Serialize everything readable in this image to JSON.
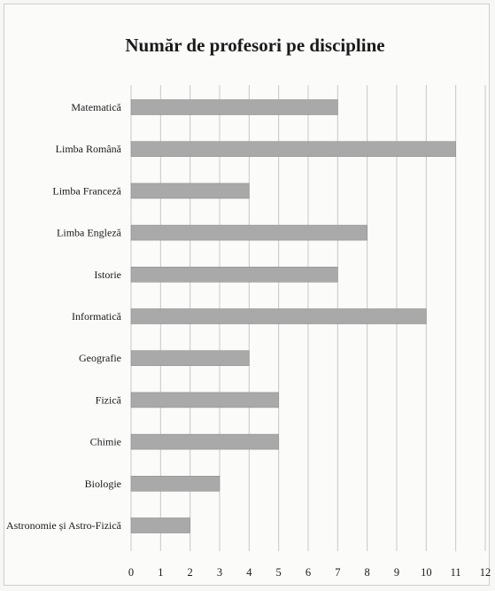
{
  "chart_data": {
    "type": "bar",
    "orientation": "horizontal",
    "title": "Număr de profesori pe discipline",
    "categories": [
      "Matematică",
      "Limba Română",
      "Limba Franceză",
      "Limba Engleză",
      "Istorie",
      "Informatică",
      "Geografie",
      "Fizică",
      "Chimie",
      "Biologie",
      "Astronomie și Astro-Fizică"
    ],
    "values": [
      7,
      11,
      4,
      8,
      7,
      10,
      4,
      5,
      5,
      3,
      2
    ],
    "xlim": [
      0,
      12
    ],
    "xticks": [
      "0",
      "1",
      "2",
      "3",
      "4",
      "5",
      "6",
      "7",
      "8",
      "9",
      "10",
      "11",
      "12"
    ],
    "grid": true,
    "bar_color": "#a9a9a9",
    "grid_color": "#c8c8c8",
    "legend": false
  }
}
